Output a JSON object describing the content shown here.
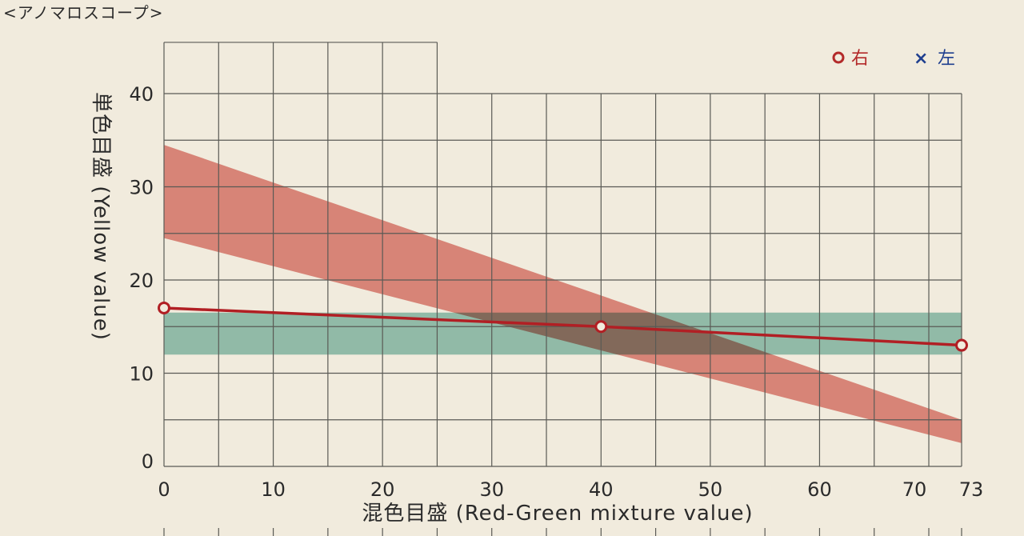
{
  "title": "<アノマロスコープ>",
  "chart_data": {
    "type": "line",
    "xlabel": "混色目盛 (Red-Green mixture value)",
    "ylabel": "単色目盛 (Yellow value)",
    "xlim": [
      0,
      73
    ],
    "ylim": [
      0,
      40
    ],
    "x_ticks": [
      0,
      10,
      20,
      30,
      40,
      50,
      60,
      70,
      73
    ],
    "y_ticks": [
      0,
      10,
      20,
      30,
      40
    ],
    "grid": true,
    "legend_position": "top-right",
    "legend": [
      {
        "symbol": "o",
        "label": "右",
        "color": "#b32a2a"
      },
      {
        "symbol": "×",
        "label": "左",
        "color": "#1f3f8f"
      }
    ],
    "series": [
      {
        "legend": "右",
        "color": "#b11f24",
        "x": [
          0,
          40,
          73
        ],
        "y": [
          17,
          15,
          13
        ]
      }
    ],
    "bands": [
      {
        "kind": "sloped",
        "color": "#d9645c",
        "x": [
          0,
          73
        ],
        "y_upper": [
          34.5,
          5
        ],
        "y_lower": [
          24.5,
          2.5
        ]
      },
      {
        "kind": "horizontal",
        "color": "#6fb3a6",
        "x": [
          0,
          73
        ],
        "y_upper": [
          16.5,
          16.5
        ],
        "y_lower": [
          12,
          12
        ]
      }
    ]
  }
}
